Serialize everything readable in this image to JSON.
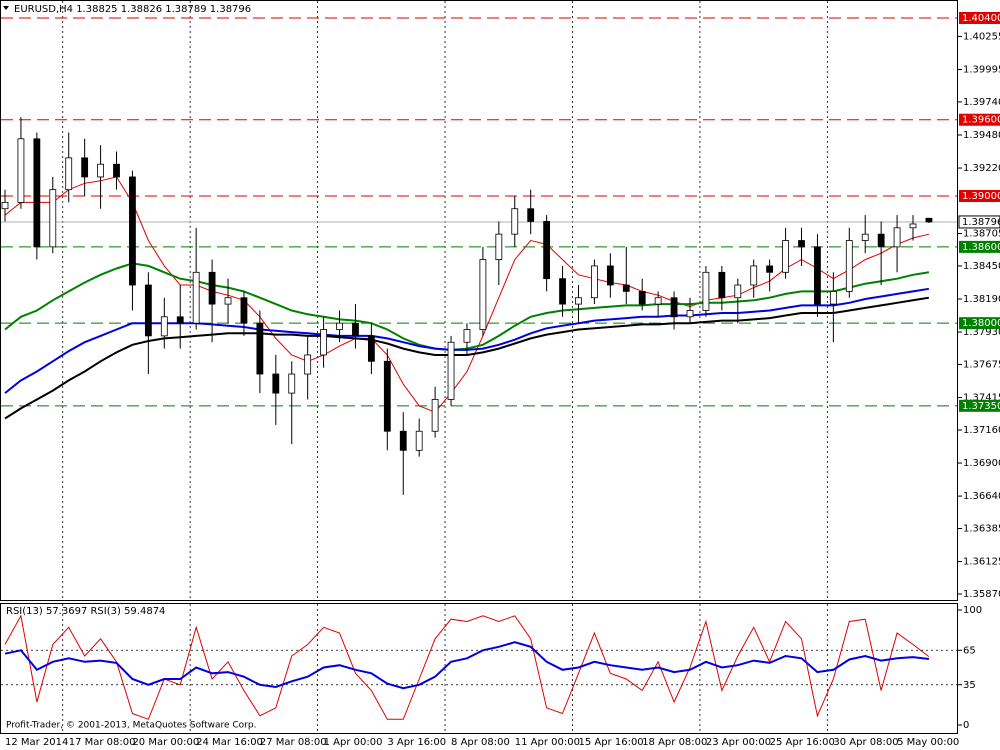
{
  "chart_data": {
    "type": "candlestick",
    "header": "EURUSD,H4  1.38825 1.38826 1.38789 1.38796",
    "categories": [
      "12 Mar 2014",
      null,
      null,
      null,
      "17 Mar 08:00",
      null,
      null,
      null,
      "20 Mar 00:00",
      null,
      null,
      null,
      "24 Mar 16:00",
      null,
      null,
      null,
      "27 Mar 08:00",
      null,
      null,
      null,
      "1 Apr 00:00",
      null,
      null,
      null,
      "3 Apr 16:00",
      null,
      null,
      null,
      "8 Apr 08:00",
      null,
      null,
      null,
      "11 Apr 00:00",
      null,
      null,
      null,
      "15 Apr 16:00",
      null,
      null,
      null,
      "18 Apr 08:00",
      null,
      null,
      null,
      "23 Apr 00:00",
      null,
      null,
      null,
      "25 Apr 16:00",
      null,
      null,
      null,
      "30 Apr 08:00",
      null,
      null,
      null,
      "5 May 00:00",
      null,
      null
    ],
    "candles": [
      [
        1.389,
        1.3905,
        1.388,
        1.3895
      ],
      [
        1.3895,
        1.3962,
        1.389,
        1.3945
      ],
      [
        1.3945,
        1.395,
        1.385,
        1.386
      ],
      [
        1.386,
        1.3915,
        1.3855,
        1.3905
      ],
      [
        1.3905,
        1.395,
        1.3895,
        1.393
      ],
      [
        1.393,
        1.3945,
        1.39,
        1.3915
      ],
      [
        1.3915,
        1.394,
        1.389,
        1.3925
      ],
      [
        1.3925,
        1.3935,
        1.3905,
        1.3915
      ],
      [
        1.3915,
        1.392,
        1.381,
        1.383
      ],
      [
        1.383,
        1.384,
        1.376,
        1.379
      ],
      [
        1.379,
        1.382,
        1.378,
        1.3805
      ],
      [
        1.3805,
        1.383,
        1.378,
        1.38
      ],
      [
        1.38,
        1.3875,
        1.3795,
        1.384
      ],
      [
        1.384,
        1.385,
        1.3785,
        1.3815
      ],
      [
        1.3815,
        1.3835,
        1.38,
        1.382
      ],
      [
        1.382,
        1.3825,
        1.379,
        1.38
      ],
      [
        1.38,
        1.381,
        1.3745,
        1.376
      ],
      [
        1.376,
        1.3775,
        1.372,
        1.3745
      ],
      [
        1.3745,
        1.377,
        1.3705,
        1.376
      ],
      [
        1.376,
        1.379,
        1.374,
        1.3775
      ],
      [
        1.3775,
        1.3805,
        1.3765,
        1.3795
      ],
      [
        1.3795,
        1.381,
        1.3785,
        1.38
      ],
      [
        1.38,
        1.3815,
        1.378,
        1.379
      ],
      [
        1.379,
        1.38,
        1.376,
        1.377
      ],
      [
        1.377,
        1.378,
        1.37,
        1.3715
      ],
      [
        1.3715,
        1.373,
        1.3665,
        1.37
      ],
      [
        1.37,
        1.3725,
        1.3695,
        1.3715
      ],
      [
        1.3715,
        1.375,
        1.371,
        1.374
      ],
      [
        1.374,
        1.379,
        1.3735,
        1.3785
      ],
      [
        1.3785,
        1.38,
        1.3775,
        1.3795
      ],
      [
        1.3795,
        1.386,
        1.379,
        1.385
      ],
      [
        1.385,
        1.388,
        1.383,
        1.387
      ],
      [
        1.387,
        1.39,
        1.386,
        1.389
      ],
      [
        1.389,
        1.3905,
        1.387,
        1.388
      ],
      [
        1.388,
        1.3885,
        1.3825,
        1.3835
      ],
      [
        1.3835,
        1.3845,
        1.3805,
        1.3815
      ],
      [
        1.3815,
        1.383,
        1.38,
        1.382
      ],
      [
        1.382,
        1.385,
        1.3815,
        1.3845
      ],
      [
        1.3845,
        1.3855,
        1.382,
        1.383
      ],
      [
        1.383,
        1.386,
        1.3815,
        1.3825
      ],
      [
        1.3825,
        1.3835,
        1.381,
        1.3815
      ],
      [
        1.3815,
        1.3825,
        1.3805,
        1.382
      ],
      [
        1.382,
        1.3825,
        1.3795,
        1.3805
      ],
      [
        1.3805,
        1.382,
        1.38,
        1.381
      ],
      [
        1.381,
        1.3845,
        1.3805,
        1.384
      ],
      [
        1.384,
        1.3845,
        1.381,
        1.382
      ],
      [
        1.382,
        1.3835,
        1.38,
        1.383
      ],
      [
        1.383,
        1.385,
        1.382,
        1.3845
      ],
      [
        1.3845,
        1.385,
        1.3825,
        1.384
      ],
      [
        1.384,
        1.3875,
        1.3835,
        1.3865
      ],
      [
        1.3865,
        1.3875,
        1.3845,
        1.386
      ],
      [
        1.386,
        1.387,
        1.3805,
        1.3815
      ],
      [
        1.3815,
        1.384,
        1.3785,
        1.3825
      ],
      [
        1.3825,
        1.3875,
        1.382,
        1.3865
      ],
      [
        1.3865,
        1.3885,
        1.3855,
        1.387
      ],
      [
        1.387,
        1.388,
        1.383,
        1.386
      ],
      [
        1.386,
        1.3885,
        1.384,
        1.3875
      ],
      [
        1.3875,
        1.3885,
        1.3865,
        1.3878
      ],
      [
        1.38825,
        1.38826,
        1.38789,
        1.38796
      ]
    ],
    "moving_averages": [
      {
        "color": "#e00000",
        "values": [
          1.3885,
          1.3895,
          1.3895,
          1.3895,
          1.3905,
          1.391,
          1.3912,
          1.3915,
          1.3895,
          1.3865,
          1.3845,
          1.383,
          1.383,
          1.3825,
          1.3822,
          1.3818,
          1.3805,
          1.3788,
          1.3775,
          1.377,
          1.3775,
          1.3782,
          1.3788,
          1.3788,
          1.3775,
          1.3752,
          1.3735,
          1.373,
          1.3745,
          1.3762,
          1.379,
          1.382,
          1.385,
          1.3865,
          1.3862,
          1.385,
          1.3838,
          1.3835,
          1.3832,
          1.383,
          1.3825,
          1.3822,
          1.3817,
          1.3813,
          1.3818,
          1.382,
          1.3822,
          1.3828,
          1.3833,
          1.3843,
          1.385,
          1.3843,
          1.3835,
          1.3842,
          1.385,
          1.3855,
          1.3862,
          1.3867,
          1.387
        ]
      },
      {
        "color": "#008000",
        "values": [
          1.3795,
          1.3805,
          1.381,
          1.3818,
          1.3825,
          1.3832,
          1.3838,
          1.3843,
          1.3847,
          1.3845,
          1.384,
          1.3835,
          1.3833,
          1.383,
          1.3828,
          1.3825,
          1.382,
          1.3815,
          1.381,
          1.3807,
          1.3805,
          1.3803,
          1.3802,
          1.38,
          1.3795,
          1.3788,
          1.3783,
          1.378,
          1.3779,
          1.378,
          1.3783,
          1.379,
          1.3798,
          1.3805,
          1.3808,
          1.381,
          1.3811,
          1.3812,
          1.3813,
          1.3814,
          1.3814,
          1.3815,
          1.3815,
          1.3815,
          1.3816,
          1.3816,
          1.3817,
          1.3818,
          1.382,
          1.3823,
          1.3825,
          1.3825,
          1.3825,
          1.3828,
          1.3831,
          1.3833,
          1.3835,
          1.3838,
          1.384
        ]
      },
      {
        "color": "#0000e0",
        "values": [
          1.3745,
          1.3755,
          1.3762,
          1.377,
          1.3778,
          1.3785,
          1.379,
          1.3795,
          1.38,
          1.38,
          1.38,
          1.38,
          1.38,
          1.3799,
          1.3798,
          1.3797,
          1.3795,
          1.3794,
          1.3793,
          1.3792,
          1.3791,
          1.379,
          1.379,
          1.379,
          1.3788,
          1.3785,
          1.3782,
          1.378,
          1.3779,
          1.3779,
          1.378,
          1.3783,
          1.3787,
          1.3792,
          1.3796,
          1.3798,
          1.38,
          1.3802,
          1.3803,
          1.3804,
          1.3805,
          1.3805,
          1.3806,
          1.3806,
          1.3807,
          1.3808,
          1.3808,
          1.3809,
          1.381,
          1.3812,
          1.3814,
          1.3814,
          1.3814,
          1.3816,
          1.3819,
          1.3821,
          1.3823,
          1.3825,
          1.3827
        ]
      },
      {
        "color": "#000000",
        "values": [
          1.3725,
          1.3733,
          1.374,
          1.3747,
          1.3755,
          1.3762,
          1.377,
          1.3777,
          1.3783,
          1.3786,
          1.3788,
          1.3789,
          1.379,
          1.3791,
          1.3792,
          1.3792,
          1.3792,
          1.3791,
          1.3791,
          1.379,
          1.379,
          1.3789,
          1.3788,
          1.3787,
          1.3784,
          1.378,
          1.3777,
          1.3775,
          1.3775,
          1.3775,
          1.3777,
          1.378,
          1.3784,
          1.3788,
          1.3791,
          1.3793,
          1.3795,
          1.3796,
          1.3797,
          1.3798,
          1.3799,
          1.3799,
          1.38,
          1.38,
          1.3801,
          1.3802,
          1.3802,
          1.3803,
          1.3804,
          1.3806,
          1.3808,
          1.3808,
          1.3808,
          1.381,
          1.3812,
          1.3814,
          1.3816,
          1.3818,
          1.382
        ]
      }
    ],
    "ylim": [
      1.3587,
      1.404
    ],
    "yticks": [
      {
        "value": 1.40255,
        "label": "1.40255"
      },
      {
        "value": 1.39995,
        "label": "1.39995"
      },
      {
        "value": 1.3974,
        "label": "1.39740"
      },
      {
        "value": 1.3948,
        "label": "1.39480"
      },
      {
        "value": 1.3922,
        "label": "1.39220"
      },
      {
        "value": 1.38705,
        "label": "1.38705"
      },
      {
        "value": 1.3845,
        "label": "1.38450"
      },
      {
        "value": 1.3819,
        "label": "1.38190"
      },
      {
        "value": 1.3793,
        "label": "1.37930"
      },
      {
        "value": 1.37675,
        "label": "1.37675"
      },
      {
        "value": 1.37415,
        "label": "1.37415"
      },
      {
        "value": 1.3716,
        "label": "1.37160"
      },
      {
        "value": 1.369,
        "label": "1.36900"
      },
      {
        "value": 1.3664,
        "label": "1.36640"
      },
      {
        "value": 1.36385,
        "label": "1.36385"
      },
      {
        "value": 1.36125,
        "label": "1.36125"
      },
      {
        "value": 1.3587,
        "label": "1.35870"
      }
    ],
    "levels": [
      {
        "value": 1.404,
        "label": "1.40400",
        "color": "#e00000"
      },
      {
        "value": 1.396,
        "label": "1.39600",
        "color": "#e00000"
      },
      {
        "value": 1.39,
        "label": "1.39000",
        "color": "#e00000"
      },
      {
        "value": 1.386,
        "label": "1.38600",
        "color": "#008000"
      },
      {
        "value": 1.38,
        "label": "1.38000",
        "color": "#008000"
      },
      {
        "value": 1.3735,
        "label": "1.37350",
        "color": "#008000"
      }
    ],
    "current": {
      "value": 1.38796,
      "label": "1.38796"
    },
    "grid": true,
    "rsi": {
      "header": "RSI(13) 57.3697  RSI(3) 59.4874",
      "ylim": [
        0,
        100
      ],
      "yticks": [
        100,
        65,
        35,
        0
      ],
      "levels": [
        65,
        35
      ],
      "series": [
        {
          "color": "#e00000",
          "values": [
            70,
            95,
            20,
            70,
            85,
            60,
            75,
            55,
            10,
            5,
            40,
            35,
            85,
            40,
            55,
            30,
            8,
            15,
            60,
            70,
            85,
            80,
            45,
            30,
            5,
            5,
            40,
            75,
            92,
            90,
            95,
            90,
            95,
            75,
            15,
            10,
            45,
            80,
            45,
            40,
            30,
            55,
            20,
            50,
            90,
            30,
            60,
            85,
            55,
            90,
            75,
            8,
            40,
            90,
            92,
            30,
            80,
            70,
            59.4874
          ]
        },
        {
          "color": "#0000e0",
          "values": [
            62,
            65,
            48,
            55,
            58,
            55,
            56,
            54,
            40,
            35,
            40,
            40,
            50,
            45,
            46,
            42,
            35,
            33,
            38,
            42,
            50,
            52,
            48,
            45,
            36,
            32,
            35,
            42,
            55,
            58,
            65,
            68,
            72,
            68,
            55,
            48,
            50,
            55,
            52,
            50,
            48,
            50,
            46,
            48,
            55,
            50,
            52,
            56,
            54,
            60,
            58,
            46,
            48,
            57,
            60,
            56,
            58,
            59,
            57.3697
          ]
        }
      ]
    },
    "footer": "Profit-Trader, © 2001-2013, MetaQuotes Software Corp."
  }
}
